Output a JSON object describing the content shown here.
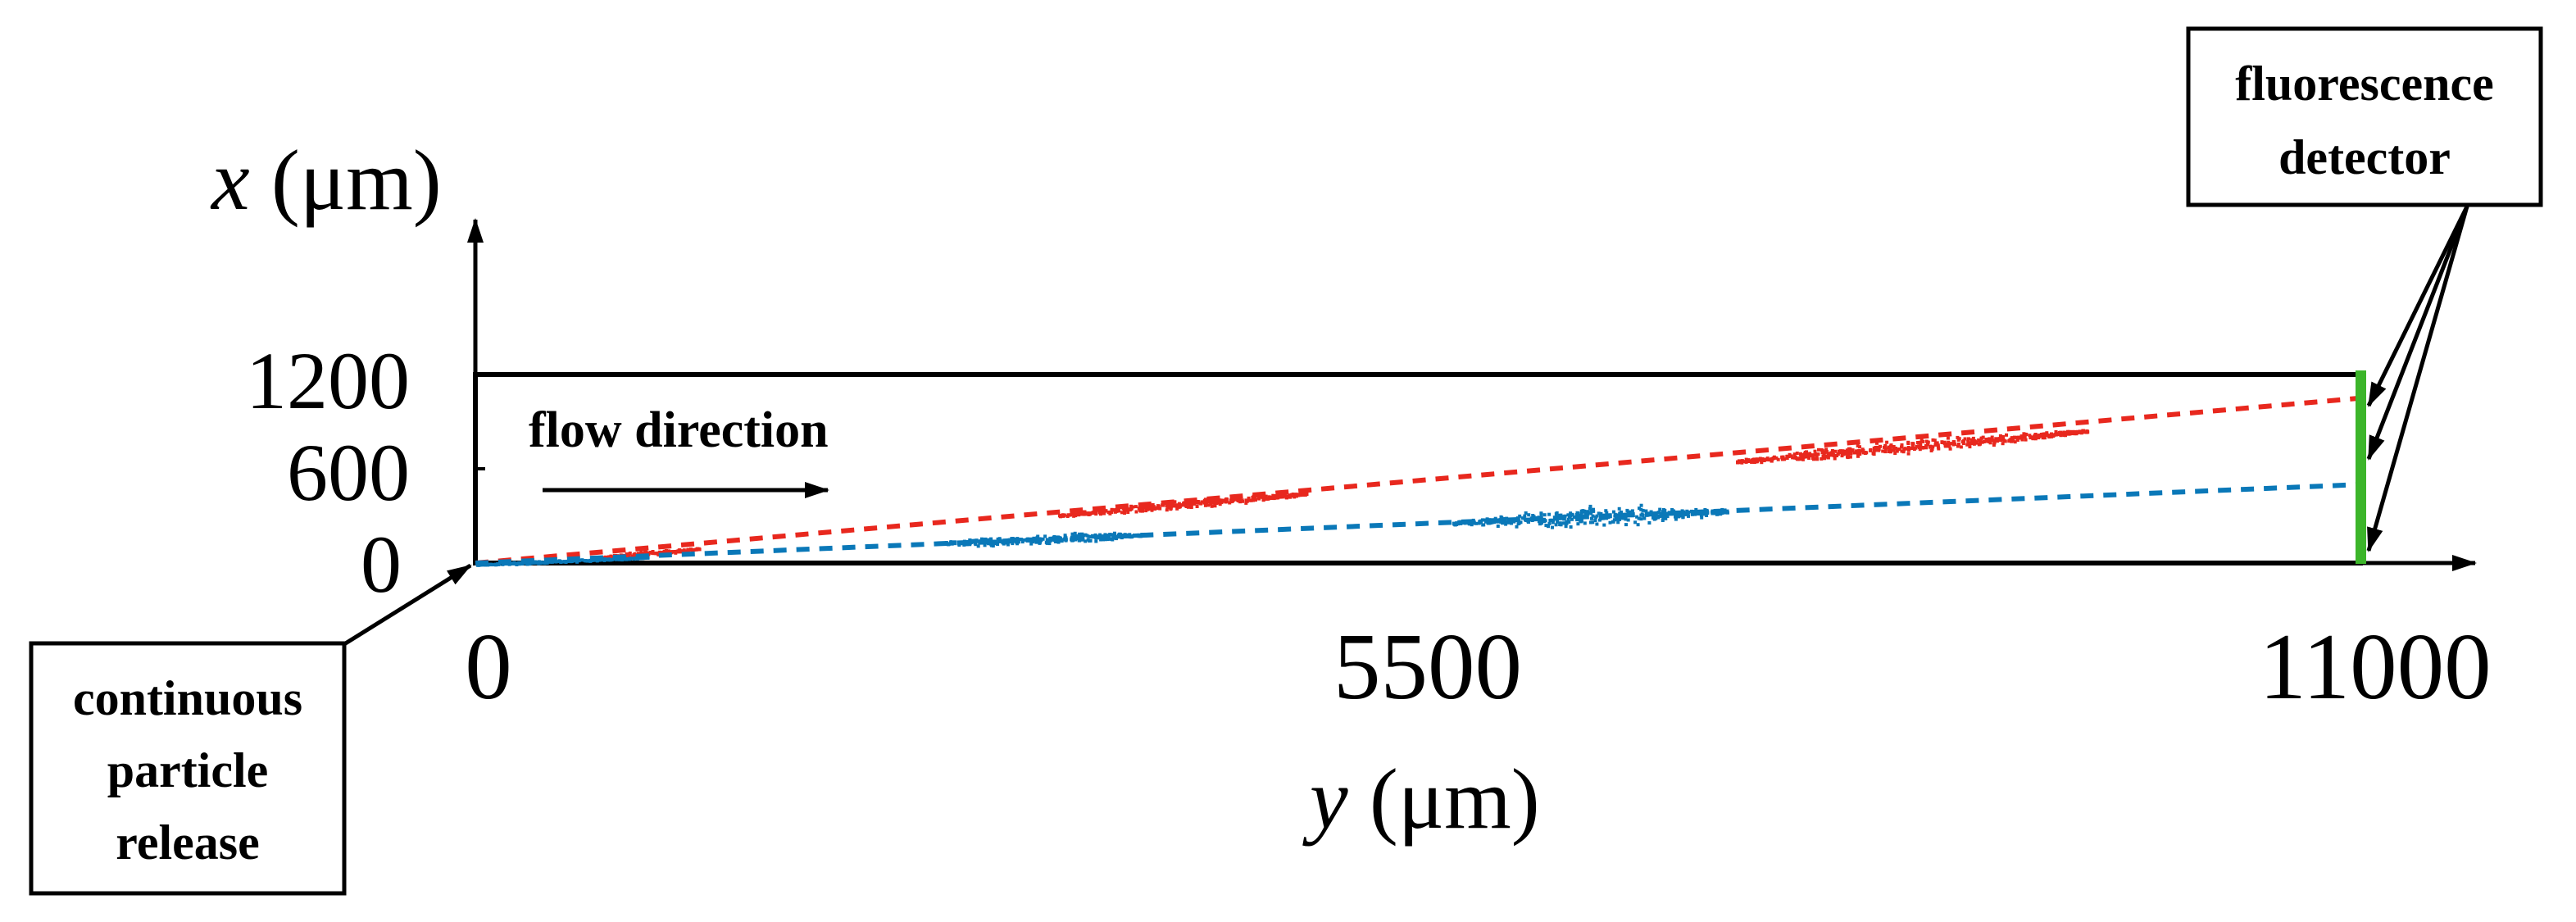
{
  "axes": {
    "x_axis": {
      "var": "x",
      "unit": " (μm)"
    },
    "y_axis": {
      "var": "y",
      "unit": " (μm)"
    },
    "x_ticks": [
      "0",
      "600",
      "1200"
    ],
    "y_ticks": [
      "0",
      "5500",
      "11000"
    ]
  },
  "annotations": {
    "flow_direction": "flow direction",
    "release_lines": [
      "continuous",
      "particle",
      "release"
    ],
    "detector_lines": [
      "fluorescence",
      "detector"
    ]
  },
  "colors": {
    "red_particles": "#e8281e",
    "blue_particles": "#0a78b8",
    "detector": "#3cb52a",
    "frame": "#000000"
  },
  "chart_data": {
    "type": "scatter",
    "xlabel": "y (μm)",
    "ylabel": "x (μm)",
    "xlim": [
      0,
      11000
    ],
    "ylim": [
      0,
      1200
    ],
    "yticks": [
      0,
      600,
      1200
    ],
    "xticks": [
      0,
      5500,
      11000
    ],
    "series": [
      {
        "color": "#e8281e",
        "trajectory": {
          "x": [
            0,
            11000
          ],
          "y": [
            0,
            1050
          ]
        },
        "clusters": [
          {
            "y_range": [
              700,
              1300
            ],
            "x_center": 70,
            "x_spread": 25
          },
          {
            "y_range": [
              3400,
              4850
            ],
            "x_center": 380,
            "x_spread": 45
          },
          {
            "y_range": [
              7350,
              9400
            ],
            "x_center": 750,
            "x_spread": 70
          }
        ]
      },
      {
        "color": "#0a78b8",
        "trajectory": {
          "x": [
            0,
            11000
          ],
          "y": [
            0,
            500
          ]
        },
        "clusters": [
          {
            "y_range": [
              0,
              1000
            ],
            "x_center": 20,
            "x_spread": 15
          },
          {
            "y_range": [
              2700,
              3900
            ],
            "x_center": 160,
            "x_spread": 55
          },
          {
            "y_range": [
              5700,
              7300
            ],
            "x_center": 300,
            "x_spread": 100
          }
        ]
      }
    ]
  }
}
